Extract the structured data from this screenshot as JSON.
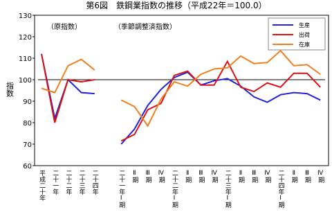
{
  "chart_data": {
    "type": "line",
    "title": "第6図　鉄鋼業指数の推移（平成22年＝100.0）",
    "panel_labels": [
      "（原指数）",
      "（季節調整済指数）"
    ],
    "y_label": "指数",
    "categories": [
      "平成二十年",
      "二十一年",
      "二十二年",
      "二十三年",
      "二十四年",
      null,
      "二十一年Ⅰ期",
      "Ⅱ期",
      "Ⅲ期",
      "Ⅳ期",
      "二十二年Ⅰ期",
      "Ⅱ期",
      "Ⅲ期",
      "Ⅳ期",
      "二十三年Ⅰ期",
      "Ⅱ期",
      "Ⅲ期",
      "Ⅳ期",
      "二十四年Ⅰ期",
      "Ⅱ期",
      "Ⅲ期",
      "Ⅳ期"
    ],
    "series": [
      {
        "name": "生産",
        "color": "#2222dd",
        "values": [
          112,
          82,
          100,
          94,
          93.5,
          null,
          70,
          77,
          88,
          95.5,
          101,
          103.5,
          97.5,
          99.5,
          100.5,
          97,
          92,
          89.5,
          93,
          94,
          93.5,
          90.5
        ]
      },
      {
        "name": "出荷",
        "color": "#dd1111",
        "values": [
          112,
          80,
          100,
          99,
          100,
          null,
          71.5,
          74.5,
          86,
          89,
          102,
          104,
          97.5,
          97.5,
          108.5,
          96.5,
          94.5,
          98.5,
          96.5,
          103,
          103,
          96.5
        ]
      },
      {
        "name": "在庫",
        "color": "#f07f20",
        "values": [
          96,
          94,
          106.5,
          109.5,
          104.5,
          null,
          90.5,
          87.5,
          78.5,
          91,
          99,
          97,
          102.5,
          105,
          105.5,
          111,
          107.5,
          108,
          113.5,
          106.5,
          107,
          102.5
        ]
      }
    ],
    "ylim": [
      60,
      130
    ],
    "yticks": [
      60,
      70,
      80,
      90,
      100,
      110,
      120,
      130
    ],
    "reference_line": 100
  }
}
